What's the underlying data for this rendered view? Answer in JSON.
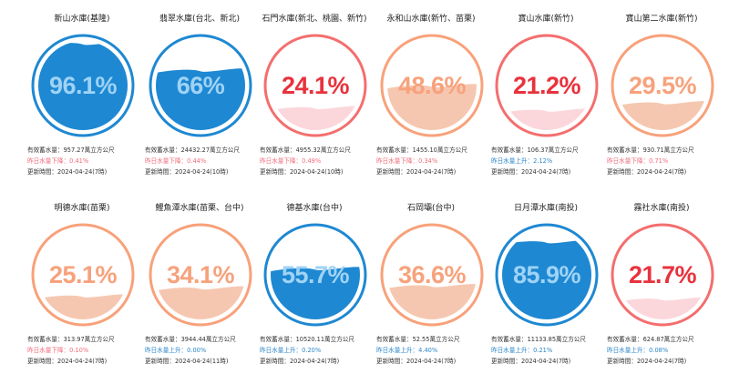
{
  "labels": {
    "storage_prefix": "有效蓄水量：",
    "storage_unit": "萬立方公尺",
    "updated_prefix": "更新時間："
  },
  "colors": {
    "high_ring": "#1e88d2",
    "high_fill": "#1e88d2",
    "high_text": "#9fd3f5",
    "mid_ring": "#f8a17a",
    "mid_fill": "#f6c7b0",
    "mid_text": "#f7a27c",
    "low_ring": "#f46e6e",
    "low_fill": "#fbd7dc",
    "low_text": "#e8323d"
  },
  "reservoirs": [
    {
      "name": "新山水庫(基隆)",
      "percent": "96.1%",
      "level": 0.961,
      "status": "high",
      "storage": "957.27",
      "change_label": "昨日水量下降：",
      "change_value": "0.41%",
      "change_dir": "down",
      "updated": "2024-04-24(7時)"
    },
    {
      "name": "翡翠水庫(台北、新北)",
      "percent": "66%",
      "level": 0.66,
      "status": "high",
      "storage": "24432.27",
      "change_label": "昨日水量下降：",
      "change_value": "0.44%",
      "change_dir": "down",
      "updated": "2024-04-24(10時)"
    },
    {
      "name": "石門水庫(新北、桃園、新竹)",
      "percent": "24.1%",
      "level": 0.241,
      "status": "low",
      "storage": "4955.32",
      "change_label": "昨日水量下降：",
      "change_value": "0.49%",
      "change_dir": "down",
      "updated": "2024-04-24(10時)"
    },
    {
      "name": "永和山水庫(新竹、苗栗)",
      "percent": "48.6%",
      "level": 0.486,
      "status": "mid",
      "storage": "1455.10",
      "change_label": "昨日水量下降：",
      "change_value": "0.34%",
      "change_dir": "down",
      "updated": "2024-04-24(7時)"
    },
    {
      "name": "寶山水庫(新竹)",
      "percent": "21.2%",
      "level": 0.212,
      "status": "low",
      "storage": "106.37",
      "change_label": "昨日水量上升：",
      "change_value": "2.12%",
      "change_dir": "up",
      "updated": "2024-04-24(7時)"
    },
    {
      "name": "寶山第二水庫(新竹)",
      "percent": "29.5%",
      "level": 0.295,
      "status": "mid",
      "storage": "930.71",
      "change_label": "昨日水量下降：",
      "change_value": "0.71%",
      "change_dir": "down",
      "updated": "2024-04-24(7時)"
    },
    {
      "name": "明德水庫(苗栗)",
      "percent": "25.1%",
      "level": 0.251,
      "status": "mid",
      "storage": "313.97",
      "change_label": "昨日水量下降：",
      "change_value": "0.10%",
      "change_dir": "down",
      "updated": "2024-04-24(7時)"
    },
    {
      "name": "鯉魚潭水庫(苗栗、台中)",
      "percent": "34.1%",
      "level": 0.341,
      "status": "mid",
      "storage": "3944.44",
      "change_label": "昨日水量上升：",
      "change_value": "0.00%",
      "change_dir": "up",
      "updated": "2024-04-24(11時)"
    },
    {
      "name": "德基水庫(台中)",
      "percent": "55.7%",
      "level": 0.557,
      "status": "high",
      "storage": "10520.11",
      "change_label": "昨日水量上升：",
      "change_value": "0.20%",
      "change_dir": "up",
      "updated": "2024-04-24(7時)"
    },
    {
      "name": "石岡壩(台中)",
      "percent": "36.6%",
      "level": 0.366,
      "status": "mid",
      "storage": "52.55",
      "change_label": "昨日水量上升：",
      "change_value": "4.40%",
      "change_dir": "up",
      "updated": "2024-04-24(7時)"
    },
    {
      "name": "日月潭水庫(南投)",
      "percent": "85.9%",
      "level": 0.859,
      "status": "high",
      "storage": "11133.85",
      "change_label": "昨日水量上升：",
      "change_value": "0.21%",
      "change_dir": "up",
      "updated": "2024-04-24(7時)"
    },
    {
      "name": "霧社水庫(南投)",
      "percent": "21.7%",
      "level": 0.217,
      "status": "low",
      "storage": "624.87",
      "change_label": "昨日水量上升：",
      "change_value": "0.08%",
      "change_dir": "up",
      "updated": "2024-04-24(7時)"
    }
  ]
}
